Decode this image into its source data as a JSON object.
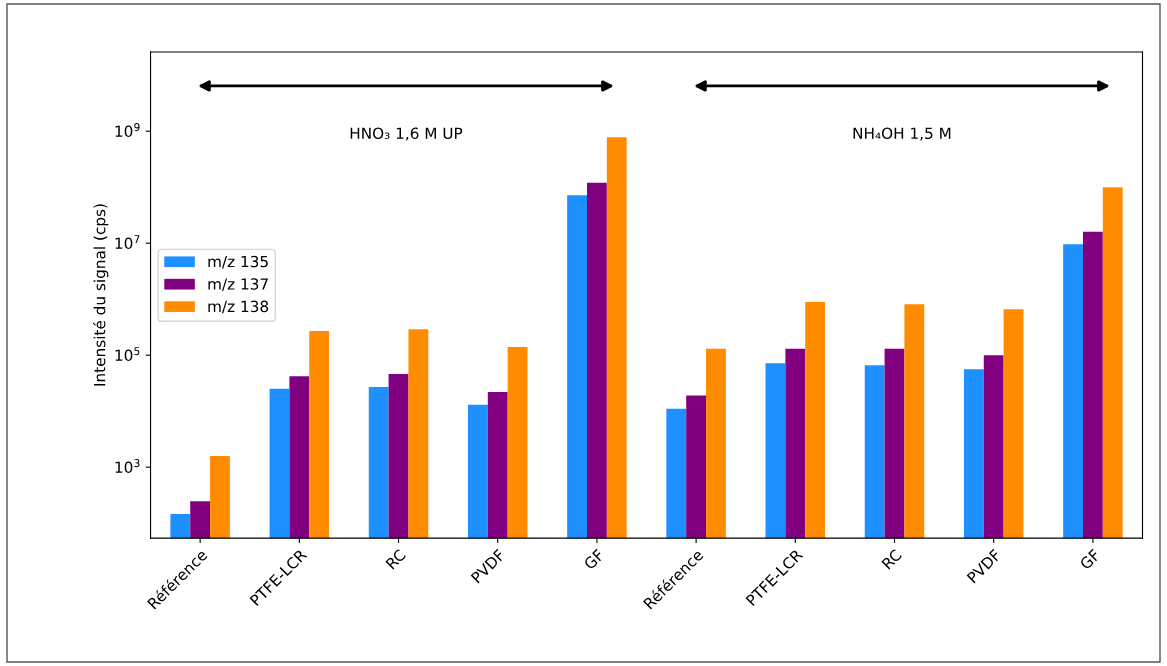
{
  "chart_data": {
    "type": "bar",
    "ylabel": "Intensité du signal (cps)",
    "log": "y",
    "categories": [
      "Référence",
      "PTFE-LCR",
      "RC",
      "PVDF",
      "GF",
      "Référence",
      "PTFE-LCR",
      "RC",
      "PVDF",
      "GF"
    ],
    "series": [
      {
        "name": "m/z 135",
        "color": "#1e90ff",
        "values": [
          145,
          25000,
          27000,
          13000,
          72000000,
          11000,
          72000,
          66000,
          56000,
          9600000
        ]
      },
      {
        "name": "m/z 137",
        "color": "#800080",
        "values": [
          245,
          42000,
          46000,
          22000,
          120000000,
          19000,
          130000,
          130000,
          100000,
          16000000
        ]
      },
      {
        "name": "m/z 138",
        "color": "#ff8c00",
        "values": [
          1580,
          270000,
          290000,
          140000,
          780000000,
          130000,
          890000,
          810000,
          660000,
          100000000
        ]
      }
    ],
    "ylim": [
      54,
      26000000000
    ],
    "yticks": [
      {
        "value": 1000,
        "label": "10$^{3}$"
      },
      {
        "value": 100000,
        "label": "10$^{5}$"
      },
      {
        "value": 10000000,
        "label": "10$^{7}$"
      },
      {
        "value": 1000000000,
        "label": "10$^{9}$"
      }
    ],
    "annotations": [
      "HNO₃ 1,6 M UP",
      "NH₄OH 1,5 M"
    ],
    "legend": "left",
    "grid": false
  }
}
